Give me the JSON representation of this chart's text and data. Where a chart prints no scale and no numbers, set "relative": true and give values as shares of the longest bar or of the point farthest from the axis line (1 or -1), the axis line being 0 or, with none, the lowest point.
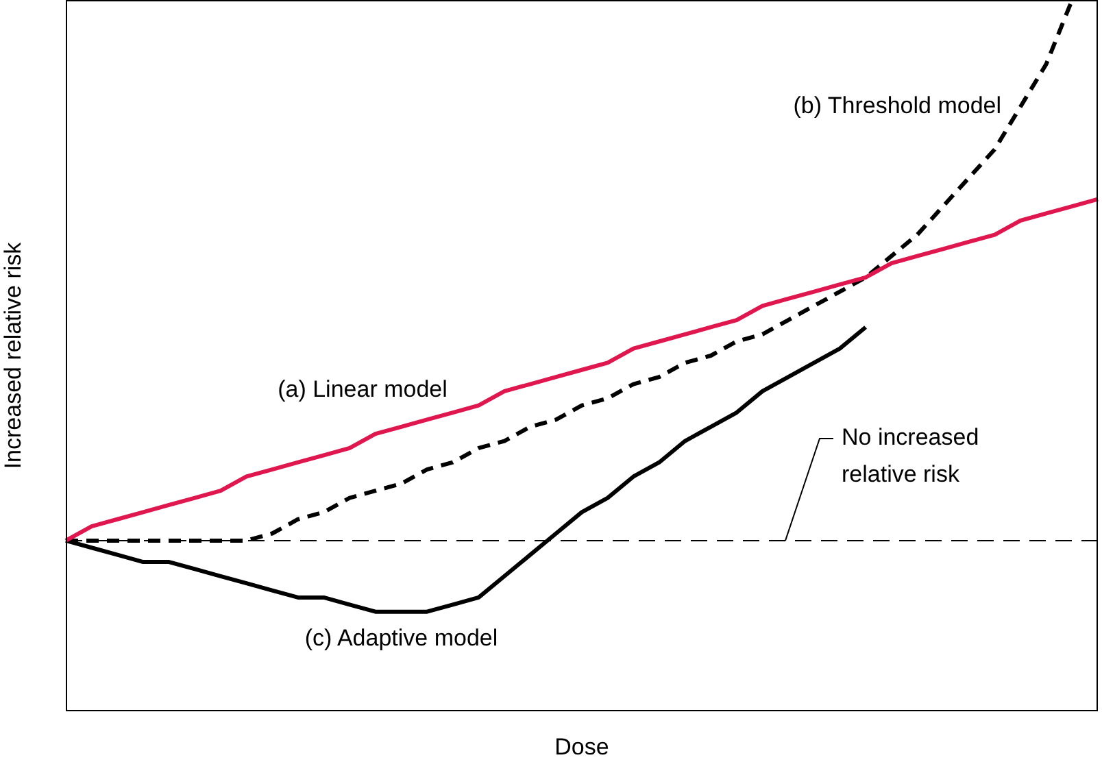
{
  "chart_data": {
    "type": "line",
    "relative": true,
    "xlabel": "Dose",
    "ylabel": "Increased relative risk",
    "legend": false,
    "grid": false,
    "marker": "none",
    "categories": [
      null,
      null,
      null,
      null,
      null,
      null,
      null,
      null,
      null,
      null,
      null,
      null,
      null,
      null,
      null,
      null,
      null,
      null,
      null,
      null,
      null,
      null,
      null,
      null,
      null,
      null,
      null,
      null,
      null,
      null,
      null,
      null,
      null,
      null,
      null,
      null,
      null,
      null,
      null,
      null,
      null
    ],
    "series": [
      {
        "name": "(a) Linear model",
        "color": "#e0174f",
        "line_style": "solid",
        "values": [
          0.24,
          0.26,
          0.27,
          0.28,
          0.29,
          0.3,
          0.31,
          0.33,
          0.34,
          0.35,
          0.36,
          0.37,
          0.39,
          0.4,
          0.41,
          0.42,
          0.43,
          0.45,
          0.46,
          0.47,
          0.48,
          0.49,
          0.51,
          0.52,
          0.53,
          0.54,
          0.55,
          0.57,
          0.58,
          0.59,
          0.6,
          0.61,
          0.63,
          0.64,
          0.65,
          0.66,
          0.67,
          0.69,
          0.7,
          0.71,
          0.72
        ]
      },
      {
        "name": "(b) Threshold model",
        "color": "#000000",
        "line_style": "dashed",
        "values": [
          0.24,
          0.24,
          0.24,
          0.24,
          0.24,
          0.24,
          0.24,
          0.24,
          0.25,
          0.27,
          0.28,
          0.3,
          0.31,
          0.32,
          0.34,
          0.35,
          0.37,
          0.38,
          0.4,
          0.41,
          0.43,
          0.44,
          0.46,
          0.47,
          0.49,
          0.5,
          0.52,
          0.53,
          0.55,
          0.57,
          0.59,
          0.61,
          0.64,
          0.67,
          0.71,
          0.75,
          0.79,
          0.85,
          0.91,
          1.0,
          null
        ]
      },
      {
        "name": "(c) Adaptive model",
        "color": "#000000",
        "line_style": "solid",
        "values": [
          0.24,
          0.23,
          0.22,
          0.21,
          0.21,
          0.2,
          0.19,
          0.18,
          0.17,
          0.16,
          0.16,
          0.15,
          0.14,
          0.14,
          0.14,
          0.15,
          0.16,
          0.19,
          0.22,
          0.25,
          0.28,
          0.3,
          0.33,
          0.35,
          0.38,
          0.4,
          0.42,
          0.45,
          0.47,
          0.49,
          0.51,
          0.54,
          null,
          null,
          null,
          null,
          null,
          null,
          null,
          null,
          null
        ]
      }
    ],
    "ref_lines": [
      {
        "axis": "y",
        "value": 0.24,
        "label": "No increased relative risk",
        "color": "#000000",
        "line_style": "dashed"
      }
    ]
  }
}
